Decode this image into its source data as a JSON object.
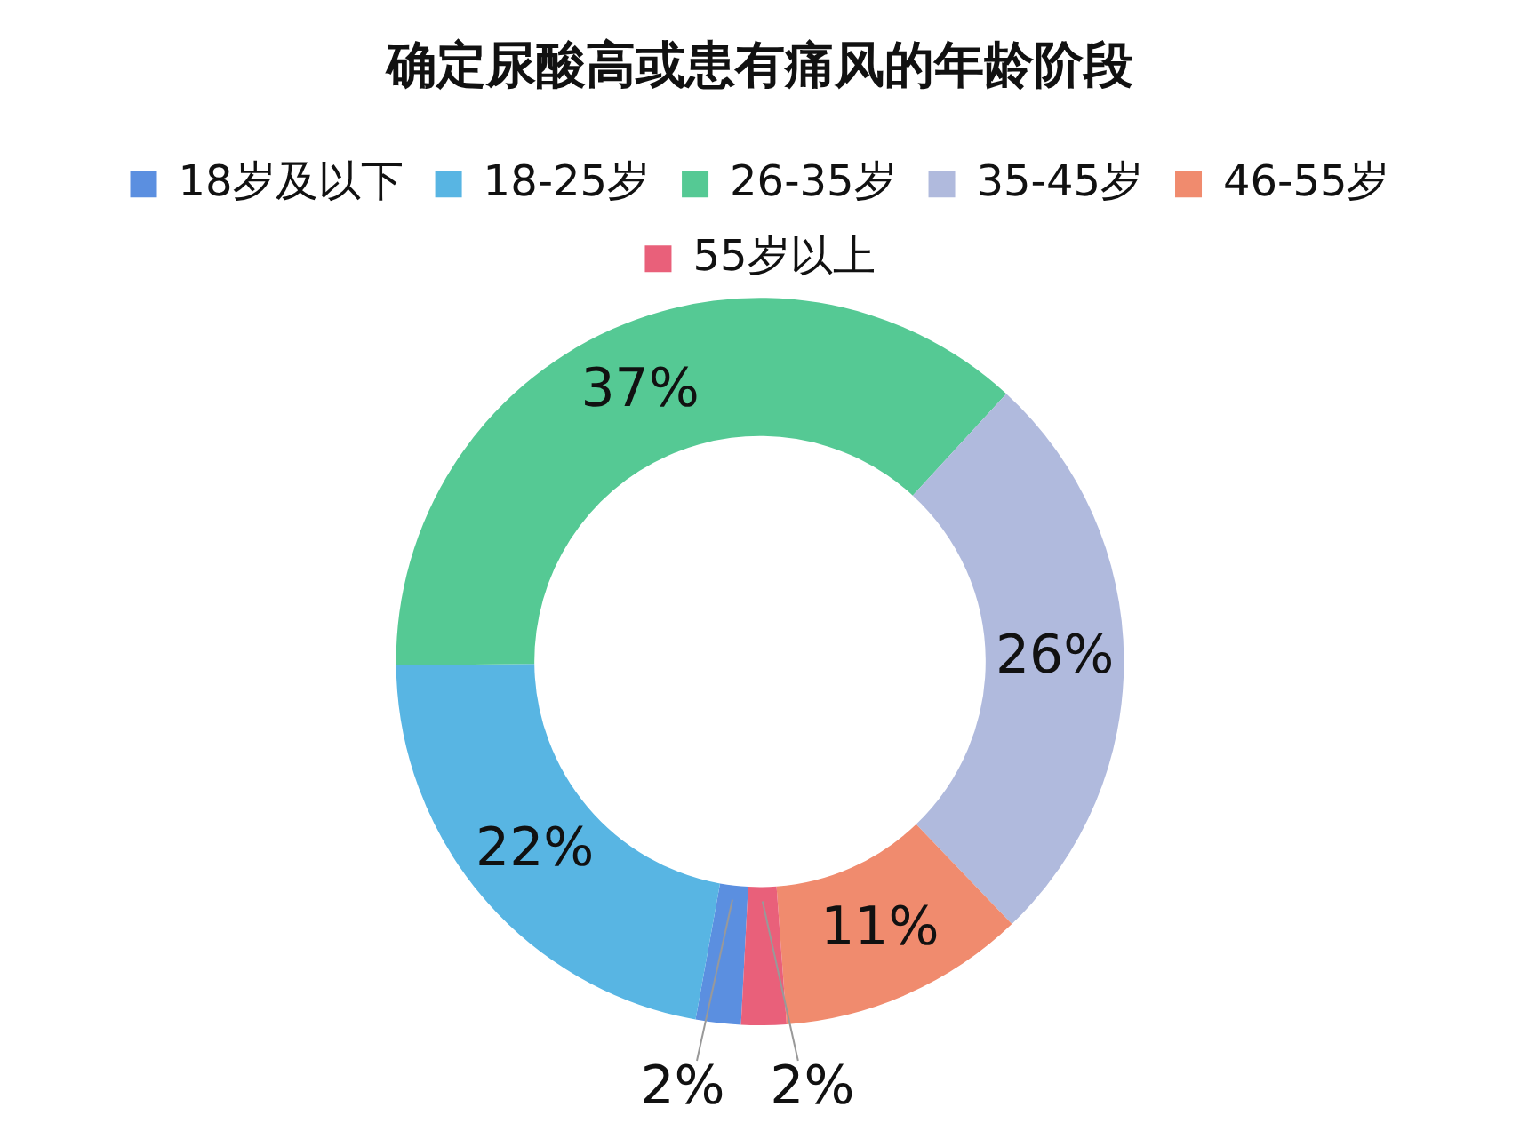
{
  "chart_data": {
    "type": "donut",
    "title": "确定尿酸高或患有痛风的年龄阶段",
    "categories": [
      "18岁及以下",
      "18-25岁",
      "26-35岁",
      "35-45岁",
      "46-55岁",
      "55岁以上"
    ],
    "values": [
      2,
      22,
      37,
      26,
      11,
      2
    ],
    "colors": [
      "#5b8fe0",
      "#58b5e3",
      "#55c994",
      "#b0badd",
      "#f08b6e",
      "#e9607a"
    ],
    "value_labels": [
      "2%",
      "22%",
      "37%",
      "26%",
      "11%",
      "2%"
    ],
    "legend": "top"
  }
}
